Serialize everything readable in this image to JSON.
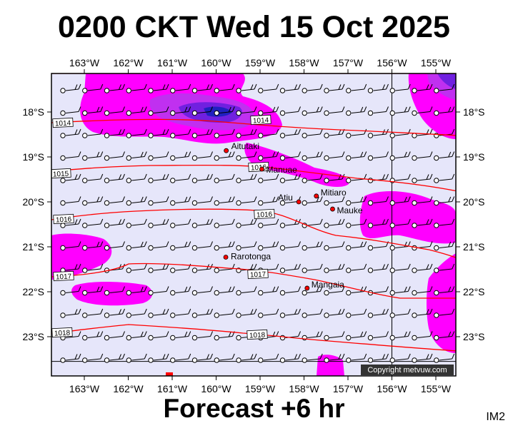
{
  "title": "0200 CKT Wed 15 Oct 2025",
  "forecast_label": "Forecast +6 hr",
  "image_code": "IM2",
  "copyright": "Copyright metvuw.com",
  "map": {
    "lon_range": [
      -163.75,
      -154.4
    ],
    "lat_range": [
      -23.8,
      -17.3
    ],
    "lon_ticks": [
      "163°W",
      "162°W",
      "161°W",
      "160°W",
      "159°W",
      "158°W",
      "157°W",
      "156°W",
      "155°W"
    ],
    "lat_ticks": [
      "18°S",
      "19°S",
      "20°S",
      "21°S",
      "22°S",
      "23°S"
    ],
    "colors": {
      "background": "#e6e6fa",
      "rain_light": "#ff00ff",
      "rain_medium": "#c030f0",
      "rain_heavy": "#7020e0",
      "rain_extreme": "#2020c0",
      "isobar": "#ff0000",
      "town": "#ff0000"
    },
    "isobar_labels": [
      "1014",
      "1014",
      "1015",
      "1016",
      "1016",
      "1016",
      "1017",
      "1017",
      "1018",
      "1018"
    ],
    "towns": [
      {
        "name": "Aitutaki",
        "lon": -159.77,
        "lat": -18.86
      },
      {
        "name": "Manuae",
        "lon": -158.96,
        "lat": -19.27
      },
      {
        "name": "Mitiaro",
        "lon": -157.72,
        "lat": -19.87
      },
      {
        "name": "Atiu",
        "lon": -158.12,
        "lat": -20.0
      },
      {
        "name": "Mauke",
        "lon": -157.35,
        "lat": -20.16
      },
      {
        "name": "Rarotonga",
        "lon": -159.78,
        "lat": -21.23
      },
      {
        "name": "Mangaia",
        "lon": -157.93,
        "lat": -21.92
      }
    ]
  }
}
